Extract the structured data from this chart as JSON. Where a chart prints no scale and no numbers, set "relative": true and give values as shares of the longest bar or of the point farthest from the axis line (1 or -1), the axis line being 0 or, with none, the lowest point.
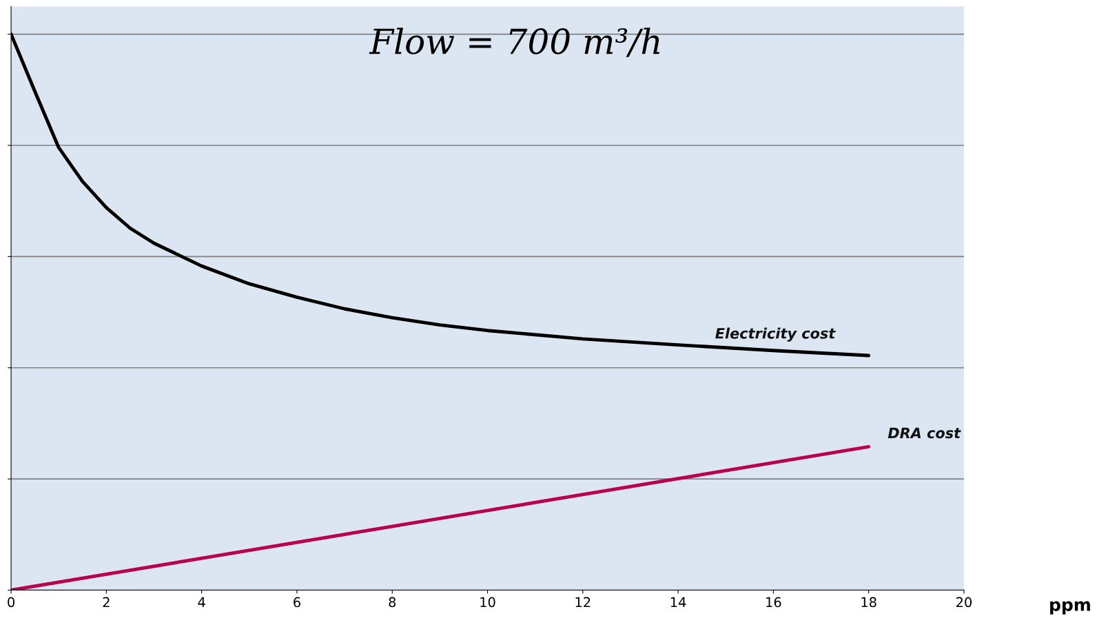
{
  "chart_data": {
    "type": "line",
    "title": "Flow = 700 m³/h",
    "xlabel": "ppm",
    "relative": true,
    "xlim": [
      0,
      20
    ],
    "xticks": [
      0,
      2,
      4,
      6,
      8,
      10,
      12,
      14,
      16,
      18,
      20
    ],
    "grid": "y",
    "legend": false,
    "marker": "none",
    "line_style": "solid",
    "series": [
      {
        "name": "Electricity cost",
        "color": "#000000",
        "x": [
          0,
          0.5,
          1,
          1.5,
          2,
          2.5,
          3,
          4,
          5,
          6,
          7,
          8,
          9,
          10,
          12,
          14,
          16,
          18
        ],
        "values": [
          1,
          0.897,
          0.796,
          0.735,
          0.688,
          0.651,
          0.624,
          0.583,
          0.551,
          0.527,
          0.506,
          0.49,
          0.477,
          0.467,
          0.452,
          0.441,
          0.431,
          0.422
        ]
      },
      {
        "name": "DRA cost",
        "color": "#b8004f",
        "x": [
          0,
          18
        ],
        "values": [
          0,
          0.258
        ]
      }
    ]
  }
}
